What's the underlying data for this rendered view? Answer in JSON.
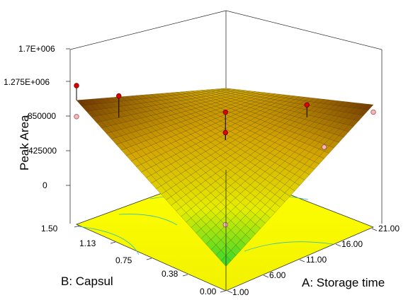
{
  "chart_data": {
    "type": "surface3d",
    "title": "",
    "zlabel": "Peak Area",
    "xlabel": "A: Storage time",
    "ylabel": "B: Capsul",
    "x_ticks": [
      "1.00",
      "6.00",
      "11.00",
      "16.00",
      "21.00"
    ],
    "y_ticks": [
      "0.00",
      "0.38",
      "0.75",
      "1.13",
      "1.50"
    ],
    "z_ticks": [
      "0",
      "425000",
      "850000",
      "1.275E+006",
      "1.7E+006"
    ],
    "xlim": [
      1,
      21
    ],
    "ylim": [
      0,
      1.5
    ],
    "zlim": [
      0,
      1700000
    ],
    "grid": false,
    "surface_corners": {
      "x1_y0": 300000,
      "x1_y1.5": 1520000,
      "x21_y0": 1500000,
      "x21_y1.5": 1000000
    },
    "surface_colormap": [
      "#2ed62e",
      "#e6ee00",
      "#d4a400",
      "#6a3000"
    ],
    "floor_color": "#ffff00",
    "points_above_surface": [
      {
        "x": 1,
        "y": 1.5,
        "z": 1700000
      },
      {
        "x": 4,
        "y": 1.3,
        "z": 1580000
      },
      {
        "x": 11,
        "y": 0.75,
        "z": 1420000
      },
      {
        "x": 11,
        "y": 0.75,
        "z": 1170000
      },
      {
        "x": 18,
        "y": 0.45,
        "z": 1400000
      }
    ],
    "points_below_surface": [
      {
        "x": 1,
        "y": 1.5,
        "z": 1320000
      },
      {
        "x": 21,
        "y": 0,
        "z": 1410000
      },
      {
        "x": 11,
        "y": 0.75,
        "z": 40000
      },
      {
        "x": 17,
        "y": 0.2,
        "z": 1040000
      }
    ]
  }
}
